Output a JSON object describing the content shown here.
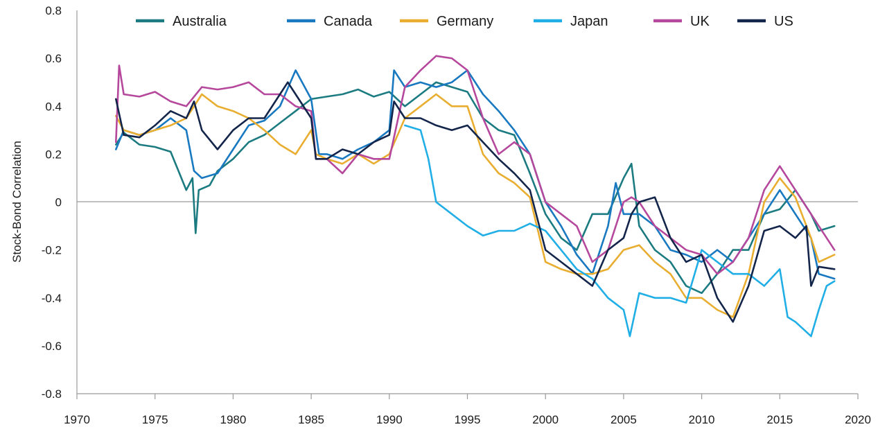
{
  "chart_data": {
    "type": "line",
    "title": "",
    "xlabel": "",
    "ylabel": "Stock-Bond Correlation",
    "xlim": [
      1970,
      2020
    ],
    "ylim": [
      -0.8,
      0.8
    ],
    "x_ticks": [
      "1970",
      "1975",
      "1980",
      "1985",
      "1990",
      "1995",
      "2000",
      "2005",
      "2010",
      "2015",
      "2020"
    ],
    "y_ticks": [
      "0.8",
      "0.6",
      "0.4",
      "0.2",
      "0",
      "-0.2",
      "-0.4",
      "-0.6",
      "-0.8"
    ],
    "y_tick_values": [
      0.8,
      0.6,
      0.4,
      0.2,
      0,
      -0.2,
      -0.4,
      -0.6,
      -0.8
    ],
    "x_tick_values": [
      1970,
      1975,
      1980,
      1985,
      1990,
      1995,
      2000,
      2005,
      2010,
      2015,
      2020
    ],
    "legend_position": "top",
    "grid": false,
    "zero_line": true,
    "series": [
      {
        "name": "Australia",
        "color": "#1b7b80",
        "points": [
          [
            1972.5,
            0.24
          ],
          [
            1973,
            0.29
          ],
          [
            1974,
            0.24
          ],
          [
            1975,
            0.23
          ],
          [
            1976,
            0.21
          ],
          [
            1977,
            0.05
          ],
          [
            1977.4,
            0.1
          ],
          [
            1977.6,
            -0.13
          ],
          [
            1977.8,
            0.05
          ],
          [
            1978.5,
            0.07
          ],
          [
            1979,
            0.13
          ],
          [
            1980,
            0.18
          ],
          [
            1981,
            0.25
          ],
          [
            1982,
            0.28
          ],
          [
            1983,
            0.33
          ],
          [
            1984,
            0.38
          ],
          [
            1985,
            0.43
          ],
          [
            1986,
            0.44
          ],
          [
            1987,
            0.45
          ],
          [
            1988,
            0.47
          ],
          [
            1989,
            0.44
          ],
          [
            1990,
            0.46
          ],
          [
            1991,
            0.4
          ],
          [
            1992,
            0.45
          ],
          [
            1993,
            0.5
          ],
          [
            1994,
            0.48
          ],
          [
            1995,
            0.46
          ],
          [
            1996,
            0.35
          ],
          [
            1997,
            0.3
          ],
          [
            1998,
            0.28
          ],
          [
            1999,
            0.12
          ],
          [
            2000,
            -0.05
          ],
          [
            2001,
            -0.15
          ],
          [
            2002,
            -0.2
          ],
          [
            2003,
            -0.05
          ],
          [
            2004,
            -0.05
          ],
          [
            2005,
            0.1
          ],
          [
            2005.5,
            0.16
          ],
          [
            2006,
            -0.1
          ],
          [
            2007,
            -0.2
          ],
          [
            2008,
            -0.25
          ],
          [
            2009,
            -0.35
          ],
          [
            2010,
            -0.38
          ],
          [
            2011,
            -0.3
          ],
          [
            2012,
            -0.2
          ],
          [
            2013,
            -0.2
          ],
          [
            2014,
            -0.05
          ],
          [
            2015,
            -0.03
          ],
          [
            2016,
            0.05
          ],
          [
            2017,
            -0.05
          ],
          [
            2017.5,
            -0.12
          ],
          [
            2018.5,
            -0.1
          ]
        ]
      },
      {
        "name": "Canada",
        "color": "#1878c0",
        "points": [
          [
            1972.5,
            0.22
          ],
          [
            1973,
            0.3
          ],
          [
            1974,
            0.28
          ],
          [
            1975,
            0.3
          ],
          [
            1976,
            0.35
          ],
          [
            1977,
            0.3
          ],
          [
            1977.5,
            0.13
          ],
          [
            1978,
            0.1
          ],
          [
            1979,
            0.12
          ],
          [
            1980,
            0.22
          ],
          [
            1981,
            0.32
          ],
          [
            1982,
            0.34
          ],
          [
            1983,
            0.4
          ],
          [
            1984,
            0.55
          ],
          [
            1985,
            0.43
          ],
          [
            1985.5,
            0.2
          ],
          [
            1986,
            0.2
          ],
          [
            1987,
            0.18
          ],
          [
            1988,
            0.22
          ],
          [
            1989,
            0.25
          ],
          [
            1990,
            0.3
          ],
          [
            1990.3,
            0.55
          ],
          [
            1991,
            0.48
          ],
          [
            1992,
            0.5
          ],
          [
            1993,
            0.48
          ],
          [
            1994,
            0.5
          ],
          [
            1995,
            0.55
          ],
          [
            1996,
            0.45
          ],
          [
            1997,
            0.38
          ],
          [
            1998,
            0.3
          ],
          [
            1999,
            0.2
          ],
          [
            2000,
            0.0
          ],
          [
            2001,
            -0.1
          ],
          [
            2002,
            -0.22
          ],
          [
            2003,
            -0.3
          ],
          [
            2004,
            -0.1
          ],
          [
            2004.5,
            0.08
          ],
          [
            2005,
            -0.05
          ],
          [
            2006,
            -0.05
          ],
          [
            2007,
            -0.1
          ],
          [
            2008,
            -0.2
          ],
          [
            2009,
            -0.22
          ],
          [
            2010,
            -0.25
          ],
          [
            2011,
            -0.2
          ],
          [
            2012,
            -0.25
          ],
          [
            2013,
            -0.15
          ],
          [
            2014,
            -0.05
          ],
          [
            2015,
            0.05
          ],
          [
            2016,
            -0.05
          ],
          [
            2017,
            -0.15
          ],
          [
            2017.5,
            -0.3
          ],
          [
            2018.5,
            -0.32
          ]
        ]
      },
      {
        "name": "Germany",
        "color": "#e9ad30",
        "points": [
          [
            1972.5,
            0.36
          ],
          [
            1973,
            0.3
          ],
          [
            1974,
            0.28
          ],
          [
            1975,
            0.3
          ],
          [
            1976,
            0.32
          ],
          [
            1977,
            0.35
          ],
          [
            1978,
            0.45
          ],
          [
            1979,
            0.4
          ],
          [
            1980,
            0.38
          ],
          [
            1981,
            0.35
          ],
          [
            1982,
            0.3
          ],
          [
            1983,
            0.24
          ],
          [
            1984,
            0.2
          ],
          [
            1985,
            0.3
          ],
          [
            1985.3,
            0.2
          ],
          [
            1986,
            0.18
          ],
          [
            1987,
            0.16
          ],
          [
            1988,
            0.2
          ],
          [
            1989,
            0.16
          ],
          [
            1990,
            0.2
          ],
          [
            1991,
            0.35
          ],
          [
            1992,
            0.4
          ],
          [
            1993,
            0.45
          ],
          [
            1994,
            0.4
          ],
          [
            1995,
            0.4
          ],
          [
            1996,
            0.2
          ],
          [
            1997,
            0.12
          ],
          [
            1998,
            0.08
          ],
          [
            1999,
            0.02
          ],
          [
            2000,
            -0.25
          ],
          [
            2001,
            -0.28
          ],
          [
            2002,
            -0.3
          ],
          [
            2003,
            -0.3
          ],
          [
            2004,
            -0.28
          ],
          [
            2005,
            -0.2
          ],
          [
            2006,
            -0.18
          ],
          [
            2007,
            -0.25
          ],
          [
            2008,
            -0.3
          ],
          [
            2009,
            -0.4
          ],
          [
            2010,
            -0.4
          ],
          [
            2011,
            -0.45
          ],
          [
            2012,
            -0.48
          ],
          [
            2013,
            -0.3
          ],
          [
            2014,
            0.0
          ],
          [
            2015,
            0.1
          ],
          [
            2016,
            0.02
          ],
          [
            2017,
            -0.15
          ],
          [
            2017.5,
            -0.25
          ],
          [
            2018.5,
            -0.22
          ]
        ]
      },
      {
        "name": "Japan",
        "color": "#20aee6",
        "points": [
          [
            1991,
            0.32
          ],
          [
            1992,
            0.3
          ],
          [
            1992.5,
            0.18
          ],
          [
            1993,
            0.0
          ],
          [
            1994,
            -0.05
          ],
          [
            1995,
            -0.1
          ],
          [
            1996,
            -0.14
          ],
          [
            1997,
            -0.12
          ],
          [
            1998,
            -0.12
          ],
          [
            1999,
            -0.09
          ],
          [
            2000,
            -0.12
          ],
          [
            2001,
            -0.2
          ],
          [
            2002,
            -0.28
          ],
          [
            2003,
            -0.32
          ],
          [
            2004,
            -0.4
          ],
          [
            2005,
            -0.45
          ],
          [
            2005.4,
            -0.56
          ],
          [
            2006,
            -0.38
          ],
          [
            2007,
            -0.4
          ],
          [
            2008,
            -0.4
          ],
          [
            2009,
            -0.42
          ],
          [
            2010,
            -0.2
          ],
          [
            2011,
            -0.25
          ],
          [
            2012,
            -0.3
          ],
          [
            2013,
            -0.3
          ],
          [
            2014,
            -0.35
          ],
          [
            2015,
            -0.28
          ],
          [
            2015.5,
            -0.48
          ],
          [
            2016,
            -0.5
          ],
          [
            2017,
            -0.56
          ],
          [
            2017.5,
            -0.45
          ],
          [
            2018,
            -0.35
          ],
          [
            2018.5,
            -0.33
          ]
        ]
      },
      {
        "name": "UK",
        "color": "#b5479c",
        "points": [
          [
            1972.5,
            0.25
          ],
          [
            1972.7,
            0.57
          ],
          [
            1973,
            0.45
          ],
          [
            1974,
            0.44
          ],
          [
            1975,
            0.46
          ],
          [
            1976,
            0.42
          ],
          [
            1977,
            0.4
          ],
          [
            1978,
            0.48
          ],
          [
            1979,
            0.47
          ],
          [
            1980,
            0.48
          ],
          [
            1981,
            0.5
          ],
          [
            1982,
            0.45
          ],
          [
            1983,
            0.45
          ],
          [
            1984,
            0.4
          ],
          [
            1985,
            0.38
          ],
          [
            1985.3,
            0.18
          ],
          [
            1986,
            0.18
          ],
          [
            1987,
            0.12
          ],
          [
            1988,
            0.2
          ],
          [
            1989,
            0.18
          ],
          [
            1990,
            0.18
          ],
          [
            1991,
            0.48
          ],
          [
            1992,
            0.55
          ],
          [
            1993,
            0.61
          ],
          [
            1994,
            0.6
          ],
          [
            1995,
            0.55
          ],
          [
            1996,
            0.35
          ],
          [
            1997,
            0.2
          ],
          [
            1998,
            0.25
          ],
          [
            1999,
            0.2
          ],
          [
            2000,
            0.0
          ],
          [
            2001,
            -0.05
          ],
          [
            2002,
            -0.1
          ],
          [
            2003,
            -0.25
          ],
          [
            2004,
            -0.2
          ],
          [
            2005,
            0.0
          ],
          [
            2005.5,
            0.02
          ],
          [
            2006,
            0.0
          ],
          [
            2007,
            -0.1
          ],
          [
            2008,
            -0.15
          ],
          [
            2009,
            -0.2
          ],
          [
            2010,
            -0.22
          ],
          [
            2011,
            -0.3
          ],
          [
            2012,
            -0.25
          ],
          [
            2013,
            -0.15
          ],
          [
            2014,
            0.05
          ],
          [
            2015,
            0.15
          ],
          [
            2016,
            0.05
          ],
          [
            2017,
            -0.05
          ],
          [
            2017.5,
            -0.1
          ],
          [
            2018.5,
            -0.2
          ]
        ]
      },
      {
        "name": "US",
        "color": "#13254a",
        "points": [
          [
            1972.5,
            0.43
          ],
          [
            1973,
            0.28
          ],
          [
            1974,
            0.27
          ],
          [
            1975,
            0.32
          ],
          [
            1976,
            0.38
          ],
          [
            1977,
            0.35
          ],
          [
            1977.5,
            0.42
          ],
          [
            1978,
            0.3
          ],
          [
            1979,
            0.22
          ],
          [
            1980,
            0.3
          ],
          [
            1981,
            0.35
          ],
          [
            1982,
            0.35
          ],
          [
            1983,
            0.45
          ],
          [
            1983.5,
            0.5
          ],
          [
            1984,
            0.45
          ],
          [
            1985,
            0.35
          ],
          [
            1985.3,
            0.18
          ],
          [
            1986,
            0.18
          ],
          [
            1987,
            0.22
          ],
          [
            1988,
            0.2
          ],
          [
            1989,
            0.25
          ],
          [
            1990,
            0.28
          ],
          [
            1990.3,
            0.42
          ],
          [
            1991,
            0.35
          ],
          [
            1992,
            0.35
          ],
          [
            1993,
            0.32
          ],
          [
            1994,
            0.3
          ],
          [
            1995,
            0.32
          ],
          [
            1996,
            0.25
          ],
          [
            1997,
            0.18
          ],
          [
            1998,
            0.12
          ],
          [
            1999,
            0.05
          ],
          [
            2000,
            -0.2
          ],
          [
            2001,
            -0.25
          ],
          [
            2002,
            -0.3
          ],
          [
            2003,
            -0.35
          ],
          [
            2004,
            -0.2
          ],
          [
            2005,
            -0.15
          ],
          [
            2005.5,
            -0.05
          ],
          [
            2006,
            0.0
          ],
          [
            2007,
            0.02
          ],
          [
            2008,
            -0.15
          ],
          [
            2009,
            -0.25
          ],
          [
            2010,
            -0.22
          ],
          [
            2011,
            -0.4
          ],
          [
            2012,
            -0.5
          ],
          [
            2013,
            -0.35
          ],
          [
            2014,
            -0.12
          ],
          [
            2015,
            -0.1
          ],
          [
            2016,
            -0.15
          ],
          [
            2016.7,
            -0.1
          ],
          [
            2017,
            -0.35
          ],
          [
            2017.5,
            -0.27
          ],
          [
            2018.5,
            -0.28
          ]
        ]
      }
    ]
  }
}
